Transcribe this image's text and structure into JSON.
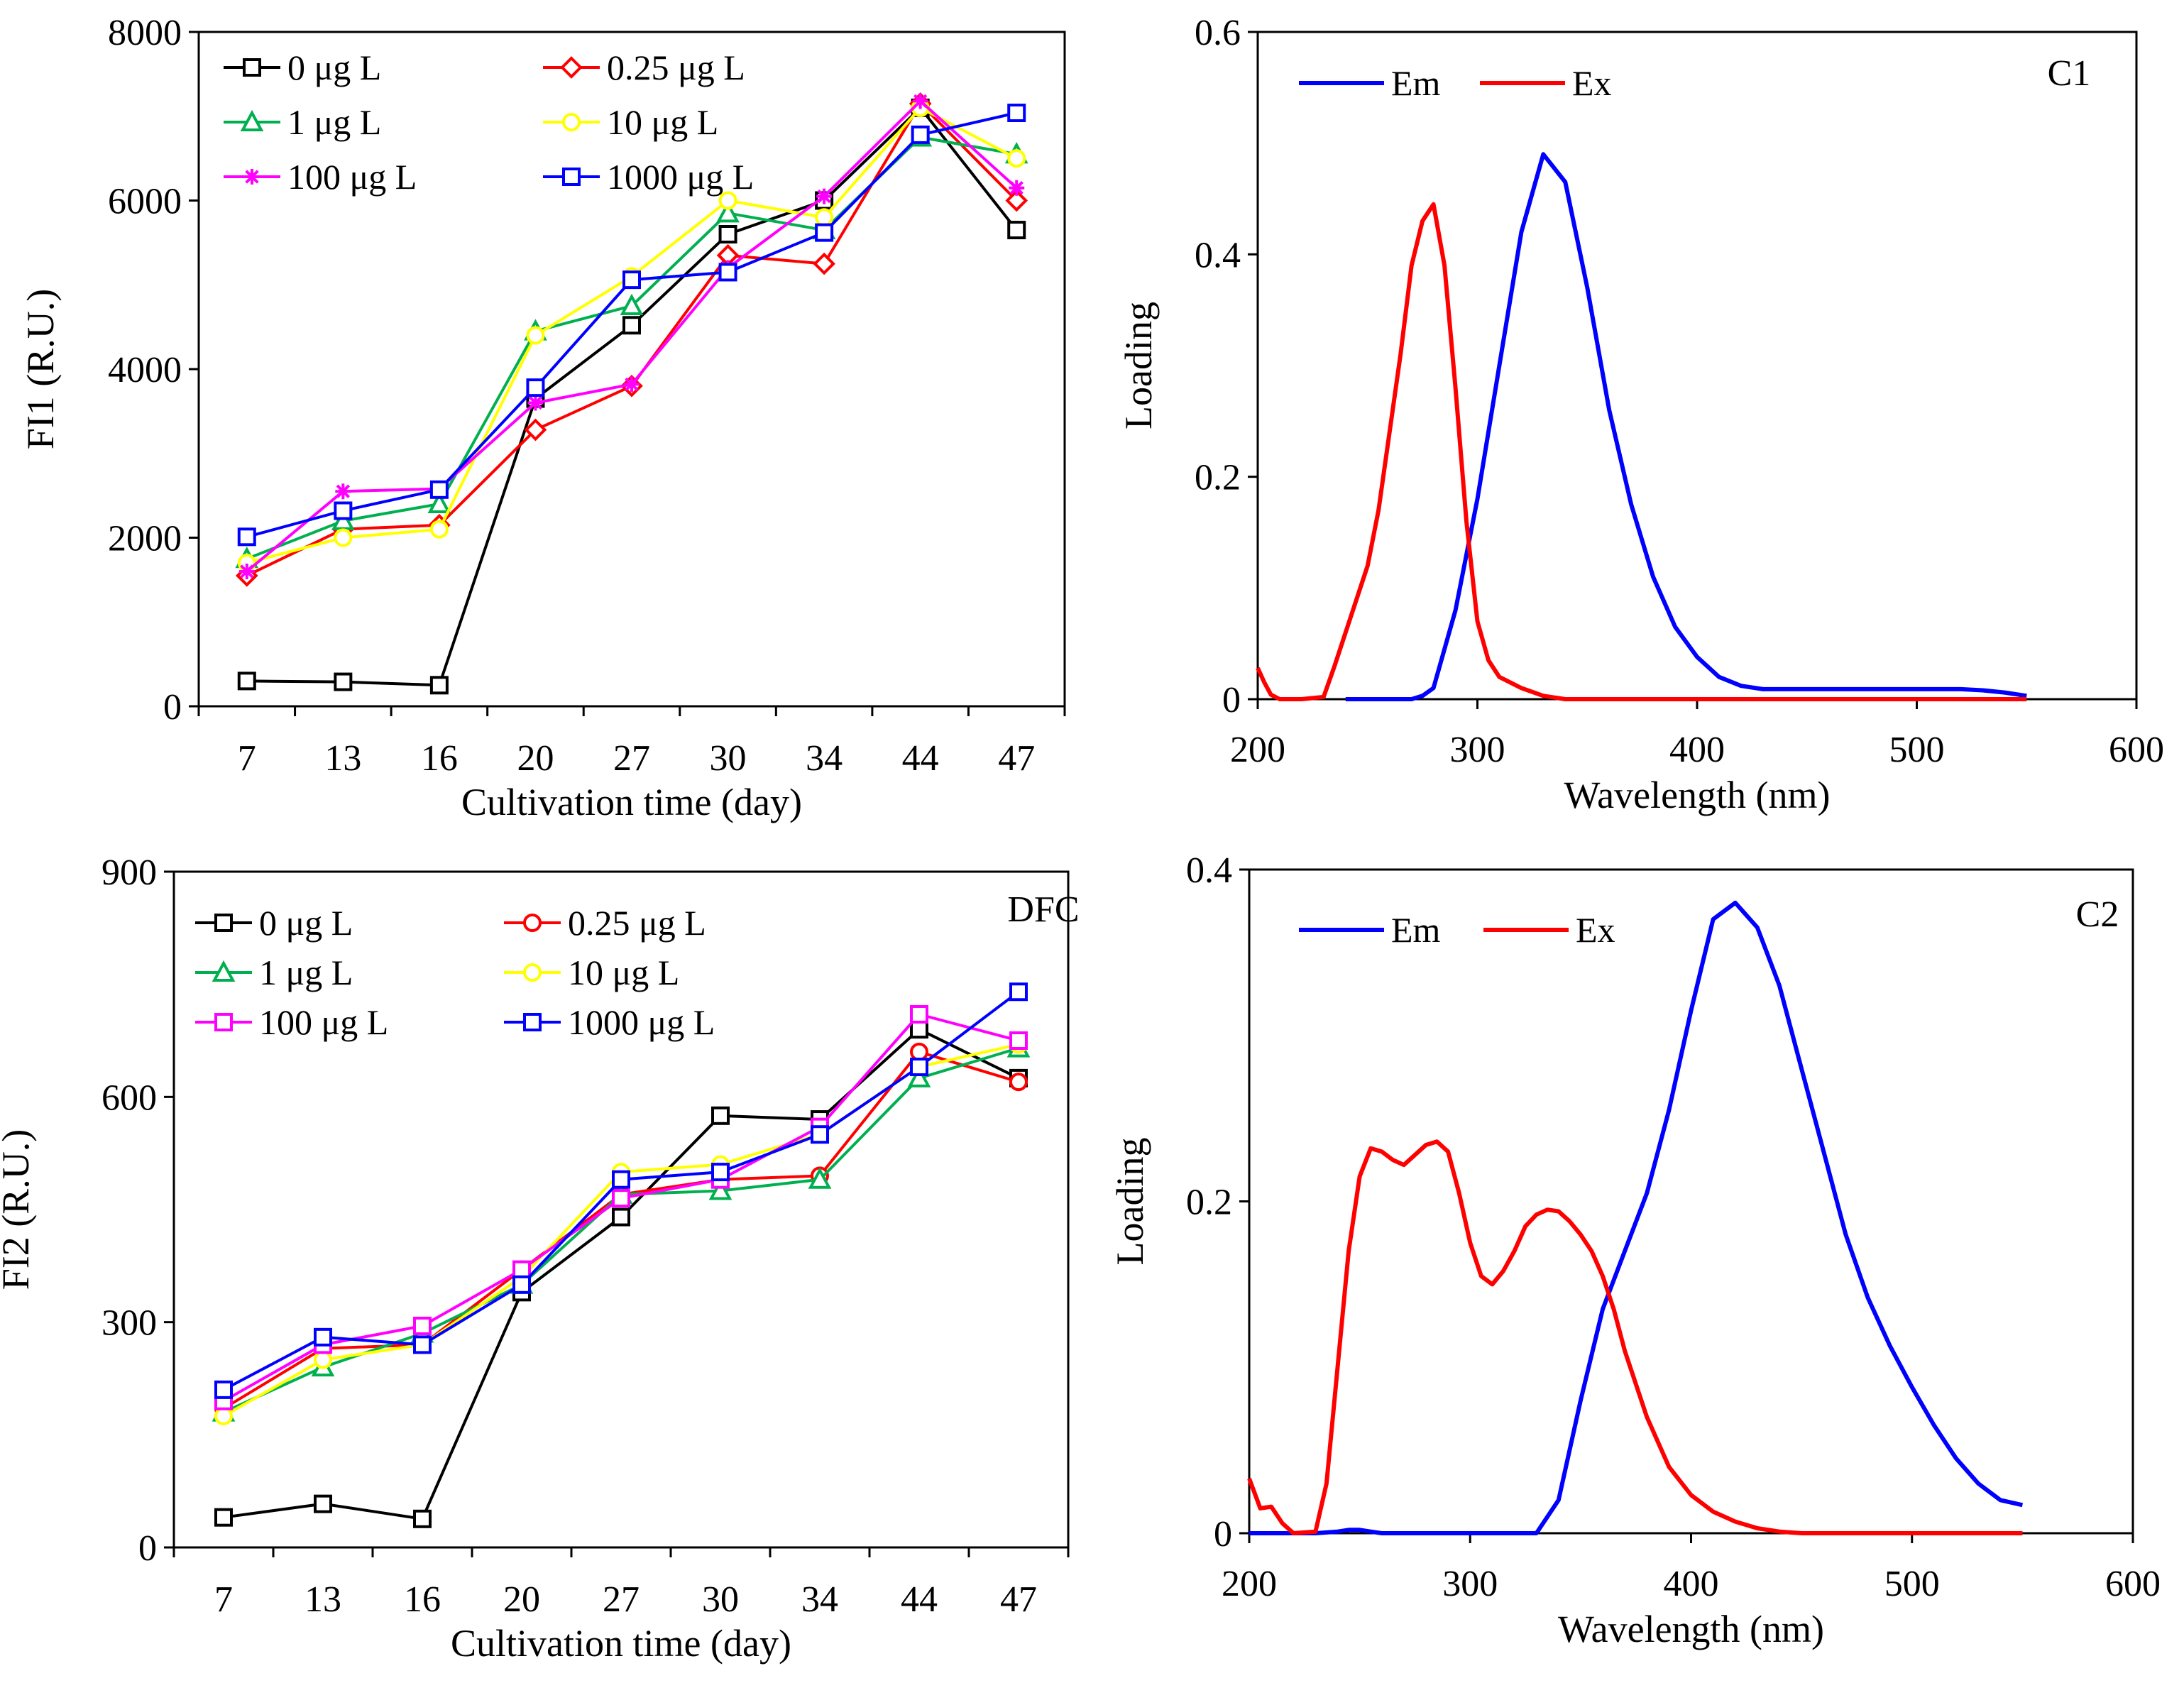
{
  "chart_data": [
    {
      "id": "fi1",
      "type": "line",
      "xlabel": "Cultivation time (day)",
      "ylabel": "FI1 (R.U.)",
      "ylim": [
        0,
        8000
      ],
      "yticks": [
        0,
        2000,
        4000,
        6000,
        8000
      ],
      "categories": [
        "7",
        "13",
        "16",
        "20",
        "27",
        "30",
        "34",
        "44",
        "47"
      ],
      "legend_position": "top-left",
      "series": [
        {
          "name": "0 μg L",
          "color": "#000000",
          "marker": "square",
          "values": [
            300,
            290,
            250,
            3650,
            4520,
            5600,
            6000,
            7100,
            5650
          ]
        },
        {
          "name": "0.25 μg L",
          "color": "#ff0000",
          "marker": "diamond",
          "values": [
            1550,
            2100,
            2150,
            3280,
            3800,
            5350,
            5250,
            7150,
            6000
          ]
        },
        {
          "name": "1 μg L",
          "color": "#00b050",
          "marker": "triangle",
          "values": [
            1750,
            2200,
            2400,
            4450,
            4750,
            5850,
            5650,
            6750,
            6550
          ]
        },
        {
          "name": "10 μg L",
          "color": "#ffff00",
          "marker": "circle",
          "values": [
            1700,
            2000,
            2100,
            4400,
            5100,
            6000,
            5800,
            7100,
            6500
          ]
        },
        {
          "name": "100 μg L",
          "color": "#ff00ff",
          "marker": "asterisk",
          "values": [
            1600,
            2550,
            2580,
            3600,
            3820,
            5200,
            6050,
            7180,
            6150
          ]
        },
        {
          "name": "1000 μg L",
          "color": "#0000ff",
          "marker": "square",
          "values": [
            2010,
            2320,
            2570,
            3780,
            5060,
            5150,
            5620,
            6780,
            7040
          ]
        }
      ]
    },
    {
      "id": "c1",
      "type": "line",
      "xlabel": "Wavelength (nm)",
      "ylabel": "Loading",
      "annotation": "C1",
      "xlim": [
        200,
        600
      ],
      "ylim": [
        0,
        0.6
      ],
      "xticks": [
        200,
        300,
        400,
        500,
        600
      ],
      "yticks": [
        0,
        0.2,
        0.4,
        0.6
      ],
      "ytick_labels": [
        "0",
        "0.2",
        "0.4",
        "0.6"
      ],
      "legend_position": "top-left",
      "series": [
        {
          "name": "Em",
          "color": "#0000ff",
          "x": [
            240,
            250,
            260,
            270,
            275,
            280,
            290,
            300,
            310,
            320,
            330,
            340,
            350,
            360,
            370,
            380,
            390,
            400,
            410,
            420,
            430,
            440,
            450,
            460,
            470,
            480,
            490,
            500,
            510,
            520,
            530,
            540,
            550
          ],
          "values": [
            0,
            0,
            0,
            0,
            0.003,
            0.01,
            0.08,
            0.18,
            0.3,
            0.42,
            0.49,
            0.465,
            0.37,
            0.26,
            0.175,
            0.11,
            0.065,
            0.038,
            0.02,
            0.012,
            0.009,
            0.009,
            0.009,
            0.009,
            0.009,
            0.009,
            0.009,
            0.009,
            0.009,
            0.009,
            0.008,
            0.006,
            0.003
          ]
        },
        {
          "name": "Ex",
          "color": "#ff0000",
          "x": [
            200,
            203,
            206,
            210,
            220,
            230,
            235,
            240,
            245,
            250,
            255,
            260,
            265,
            270,
            275,
            280,
            285,
            290,
            295,
            300,
            305,
            310,
            320,
            330,
            340,
            400,
            550
          ],
          "values": [
            0.028,
            0.015,
            0.004,
            0,
            0,
            0.002,
            0.03,
            0.06,
            0.09,
            0.12,
            0.17,
            0.24,
            0.31,
            0.39,
            0.43,
            0.445,
            0.39,
            0.28,
            0.16,
            0.07,
            0.035,
            0.02,
            0.01,
            0.003,
            0,
            0,
            0
          ]
        }
      ]
    },
    {
      "id": "fi2",
      "type": "line",
      "xlabel": "Cultivation time (day)",
      "ylabel": "FI2 (R.U.)",
      "annotation": "DFC",
      "ylim": [
        0,
        900
      ],
      "yticks": [
        0,
        300,
        600,
        900
      ],
      "categories": [
        "7",
        "13",
        "16",
        "20",
        "27",
        "30",
        "34",
        "44",
        "47"
      ],
      "legend_position": "top-left",
      "series": [
        {
          "name": "0 μg L",
          "color": "#000000",
          "marker": "square",
          "values": [
            40,
            58,
            38,
            340,
            440,
            575,
            570,
            690,
            625
          ]
        },
        {
          "name": "0.25 μg L",
          "color": "#ff0000",
          "marker": "circle",
          "values": [
            185,
            265,
            270,
            370,
            470,
            490,
            495,
            660,
            620
          ]
        },
        {
          "name": "1 μg L",
          "color": "#00b050",
          "marker": "triangle",
          "values": [
            180,
            240,
            285,
            350,
            470,
            475,
            490,
            625,
            665
          ]
        },
        {
          "name": "10 μg L",
          "color": "#ffff00",
          "marker": "circle",
          "values": [
            175,
            250,
            270,
            360,
            500,
            510,
            550,
            640,
            670
          ]
        },
        {
          "name": "100 μg L",
          "color": "#ff00ff",
          "marker": "square",
          "values": [
            195,
            270,
            295,
            370,
            465,
            490,
            560,
            710,
            675
          ]
        },
        {
          "name": "1000 μg L",
          "color": "#0000ff",
          "marker": "square",
          "values": [
            210,
            280,
            270,
            350,
            490,
            500,
            550,
            640,
            740
          ]
        }
      ]
    },
    {
      "id": "c2",
      "type": "line",
      "xlabel": "Wavelength (nm)",
      "ylabel": "Loading",
      "annotation": "C2",
      "xlim": [
        200,
        600
      ],
      "ylim": [
        0,
        0.4
      ],
      "xticks": [
        200,
        300,
        400,
        500,
        600
      ],
      "yticks": [
        0,
        0.2,
        0.4
      ],
      "ytick_labels": [
        "0",
        "0.2",
        "0.4"
      ],
      "legend_position": "top-left",
      "series": [
        {
          "name": "Em",
          "color": "#0000ff",
          "x": [
            200,
            230,
            240,
            245,
            250,
            255,
            260,
            300,
            330,
            340,
            350,
            360,
            370,
            380,
            390,
            400,
            410,
            420,
            430,
            440,
            450,
            460,
            470,
            480,
            490,
            500,
            510,
            520,
            530,
            540,
            550
          ],
          "values": [
            0,
            0,
            0.001,
            0.002,
            0.002,
            0.001,
            0,
            0,
            0,
            0.02,
            0.08,
            0.135,
            0.17,
            0.205,
            0.255,
            0.315,
            0.37,
            0.38,
            0.365,
            0.33,
            0.28,
            0.23,
            0.18,
            0.142,
            0.113,
            0.088,
            0.065,
            0.045,
            0.03,
            0.02,
            0.017
          ]
        },
        {
          "name": "Ex",
          "color": "#ff0000",
          "x": [
            200,
            205,
            210,
            215,
            220,
            230,
            235,
            240,
            245,
            250,
            255,
            260,
            265,
            270,
            275,
            280,
            285,
            290,
            295,
            300,
            305,
            310,
            315,
            320,
            325,
            330,
            335,
            340,
            345,
            350,
            355,
            360,
            365,
            370,
            380,
            390,
            400,
            410,
            420,
            430,
            440,
            450,
            480,
            550
          ],
          "values": [
            0.033,
            0.015,
            0.016,
            0.006,
            0,
            0.001,
            0.03,
            0.1,
            0.17,
            0.215,
            0.232,
            0.23,
            0.225,
            0.222,
            0.228,
            0.234,
            0.236,
            0.23,
            0.205,
            0.175,
            0.155,
            0.15,
            0.158,
            0.17,
            0.185,
            0.192,
            0.195,
            0.194,
            0.188,
            0.18,
            0.17,
            0.155,
            0.135,
            0.11,
            0.07,
            0.04,
            0.023,
            0.013,
            0.007,
            0.003,
            0.001,
            0,
            0,
            0
          ]
        }
      ]
    }
  ]
}
